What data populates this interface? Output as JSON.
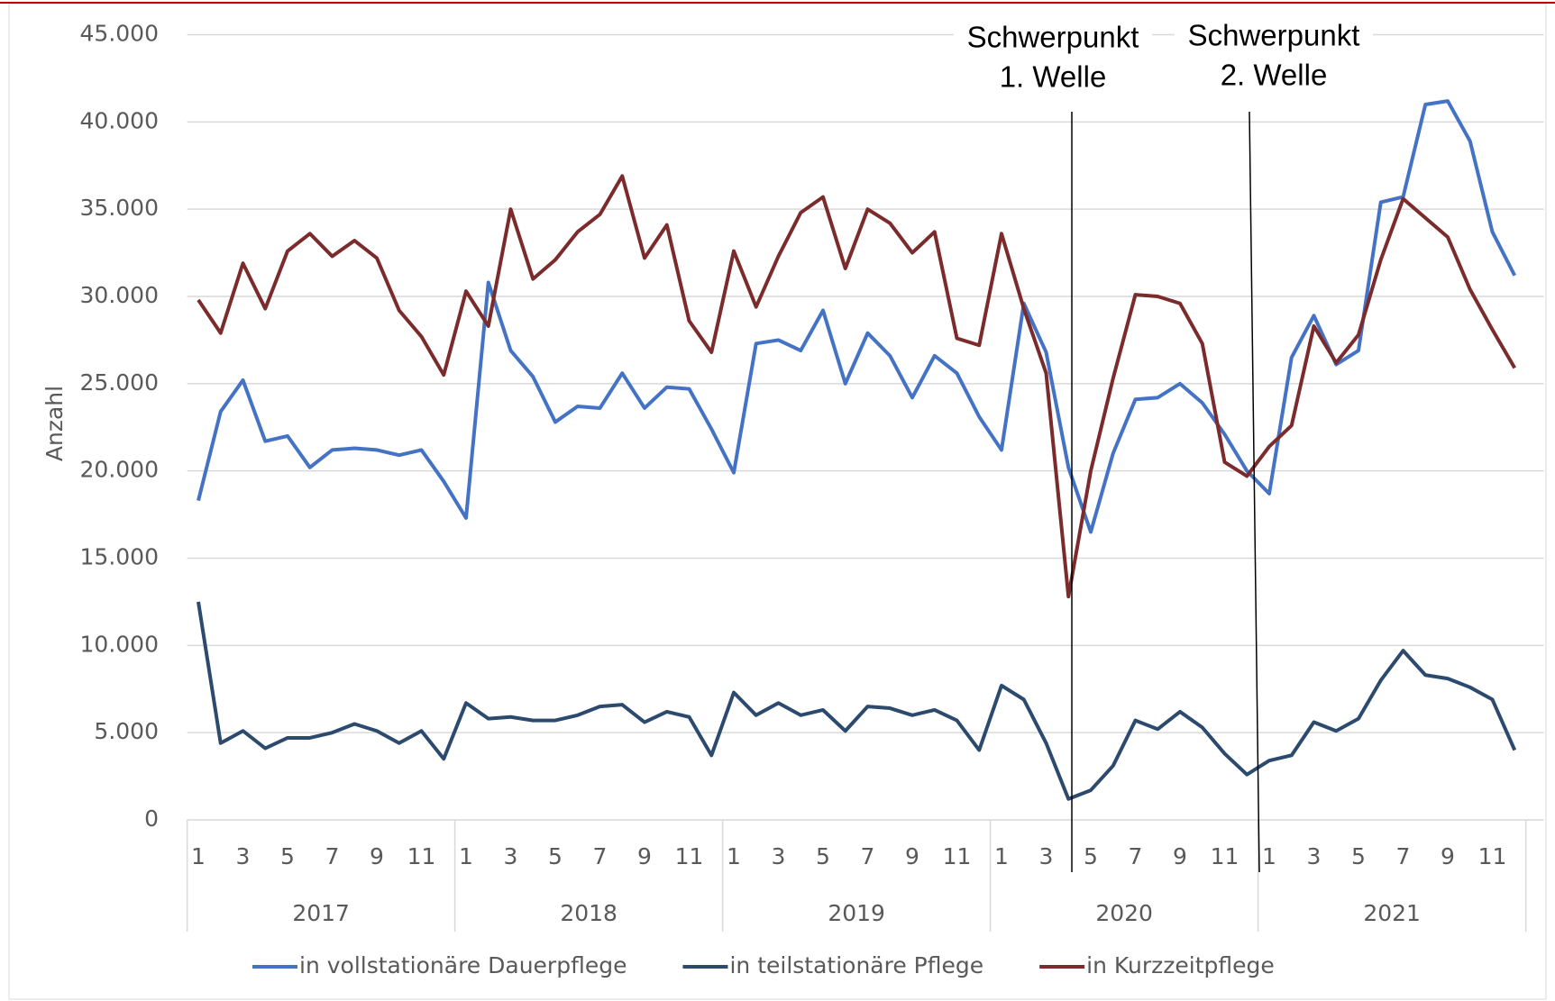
{
  "chart_data": {
    "type": "line",
    "y_label": "Anzahl",
    "categories": [
      "1",
      null,
      "3",
      null,
      "5",
      null,
      "7",
      null,
      "9",
      null,
      "11",
      null,
      "1",
      null,
      "3",
      null,
      "5",
      null,
      "7",
      null,
      "9",
      null,
      "11",
      null,
      "1",
      null,
      "3",
      null,
      "5",
      null,
      "7",
      null,
      "9",
      null,
      "11",
      null,
      "1",
      null,
      "3",
      null,
      "5",
      null,
      "7",
      null,
      "9",
      null,
      "11",
      null,
      "1",
      null,
      "3",
      null,
      "5",
      null,
      "7",
      null,
      "9",
      null,
      "11",
      null
    ],
    "years": [
      "2017",
      "2018",
      "2019",
      "2020",
      "2021"
    ],
    "series": [
      {
        "name": "in vollstationäre Dauerpflege",
        "color": "#4472c4",
        "values": [
          18300,
          23400,
          25200,
          21700,
          22000,
          20200,
          21200,
          21300,
          21200,
          20900,
          21200,
          19400,
          17300,
          30800,
          26900,
          25400,
          22800,
          23700,
          23600,
          25600,
          23600,
          24800,
          24700,
          22400,
          19900,
          27300,
          27500,
          26900,
          29200,
          25000,
          27900,
          26600,
          24200,
          26600,
          25600,
          23100,
          21200,
          29600,
          26800,
          20200,
          16500,
          21000,
          24100,
          24200,
          25000,
          23900,
          22100,
          20000,
          18700,
          26500,
          28900,
          26100,
          26900,
          35400,
          35700,
          41000,
          41200,
          38900,
          33700,
          31200
        ]
      },
      {
        "name": "in teilstationäre Pflege",
        "color": "#2c4a6e",
        "values": [
          12500,
          4400,
          5100,
          4100,
          4700,
          4700,
          5000,
          5500,
          5100,
          4400,
          5100,
          3500,
          6700,
          5800,
          5900,
          5700,
          5700,
          6000,
          6500,
          6600,
          5600,
          6200,
          5900,
          3700,
          7300,
          6000,
          6700,
          6000,
          6300,
          5100,
          6500,
          6400,
          6000,
          6300,
          5700,
          4000,
          7700,
          6900,
          4400,
          1200,
          1700,
          3100,
          5700,
          5200,
          6200,
          5300,
          3800,
          2600,
          3400,
          3700,
          5600,
          5100,
          5800,
          8000,
          9700,
          8300,
          8100,
          7600,
          6900,
          4000
        ]
      },
      {
        "name": "in Kurzzeitpflege",
        "color": "#7b2b2b",
        "values": [
          29800,
          27900,
          31900,
          29300,
          32600,
          33600,
          32300,
          33200,
          32200,
          29200,
          27700,
          25500,
          30300,
          28300,
          35000,
          31000,
          32100,
          33700,
          34700,
          36900,
          32200,
          34100,
          28600,
          26800,
          32600,
          29400,
          32300,
          34800,
          35700,
          31600,
          35000,
          34200,
          32500,
          33700,
          27600,
          27200,
          33600,
          29300,
          25600,
          12800,
          20000,
          25300,
          30100,
          30000,
          29600,
          27300,
          20500,
          19700,
          21400,
          22600,
          28300,
          26200,
          27800,
          32100,
          35600,
          34500,
          33400,
          30400,
          28100,
          25900
        ]
      }
    ],
    "annotations": [
      {
        "lines": [
          "Schwerpunkt",
          "1. Welle"
        ]
      },
      {
        "lines": [
          "Schwerpunkt",
          "2. Welle"
        ]
      }
    ],
    "ylim": [
      0,
      45000
    ],
    "yticks": [
      {
        "value": 0,
        "label": "0"
      },
      {
        "value": 5000,
        "label": "5.000"
      },
      {
        "value": 10000,
        "label": "10.000"
      },
      {
        "value": 15000,
        "label": "15.000"
      },
      {
        "value": 20000,
        "label": "20.000"
      },
      {
        "value": 25000,
        "label": "25.000"
      },
      {
        "value": 30000,
        "label": "30.000"
      },
      {
        "value": 35000,
        "label": "35.000"
      },
      {
        "value": 40000,
        "label": "40.000"
      },
      {
        "value": 45000,
        "label": "45.000"
      }
    ],
    "grid": true,
    "legend": "bottom"
  }
}
